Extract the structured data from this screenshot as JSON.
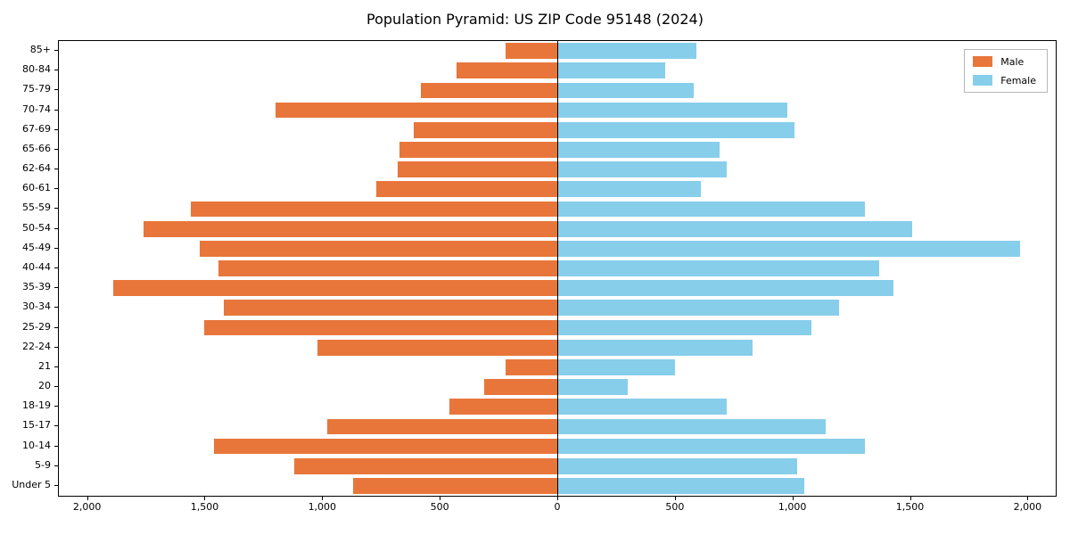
{
  "title": "Population Pyramid: US ZIP Code 95148 (2024)",
  "legend": {
    "male_label": "Male",
    "female_label": "Female"
  },
  "colors": {
    "male": "#e8763b",
    "female": "#87ceeb",
    "axis": "#000000",
    "background": "#ffffff",
    "legend_border": "#b7b7b7"
  },
  "chart_data": {
    "type": "bar",
    "subtype": "population-pyramid",
    "title": "Population Pyramid: US ZIP Code 95148 (2024)",
    "categories_top_to_bottom": [
      "85+",
      "80-84",
      "75-79",
      "70-74",
      "67-69",
      "65-66",
      "62-64",
      "60-61",
      "55-59",
      "50-54",
      "45-49",
      "40-44",
      "35-39",
      "30-34",
      "25-29",
      "22-24",
      "21",
      "20",
      "18-19",
      "15-17",
      "10-14",
      "5-9",
      "Under 5"
    ],
    "series": [
      {
        "name": "Male",
        "side": "left",
        "color": "#e8763b",
        "values": [
          220,
          430,
          580,
          1200,
          610,
          670,
          680,
          770,
          1560,
          1760,
          1520,
          1440,
          1890,
          1420,
          1500,
          1020,
          220,
          310,
          460,
          980,
          1460,
          1120,
          870
        ]
      },
      {
        "name": "Female",
        "side": "right",
        "color": "#87ceeb",
        "values": [
          590,
          460,
          580,
          980,
          1010,
          690,
          720,
          610,
          1310,
          1510,
          1970,
          1370,
          1430,
          1200,
          1080,
          830,
          500,
          300,
          720,
          1140,
          1310,
          1020,
          1050
        ]
      }
    ],
    "xlim": [
      -2120,
      2120
    ],
    "x_ticks": [
      -2000,
      -1500,
      -1000,
      -500,
      0,
      500,
      1000,
      1500,
      2000
    ],
    "x_tick_labels": [
      "2,000",
      "1,500",
      "1,000",
      "500",
      "0",
      "500",
      "1,000",
      "1,500",
      "2,000"
    ],
    "ylabel": "",
    "xlabel": "",
    "grid": false,
    "legend_position": "upper right",
    "zero_axis_line": true
  }
}
